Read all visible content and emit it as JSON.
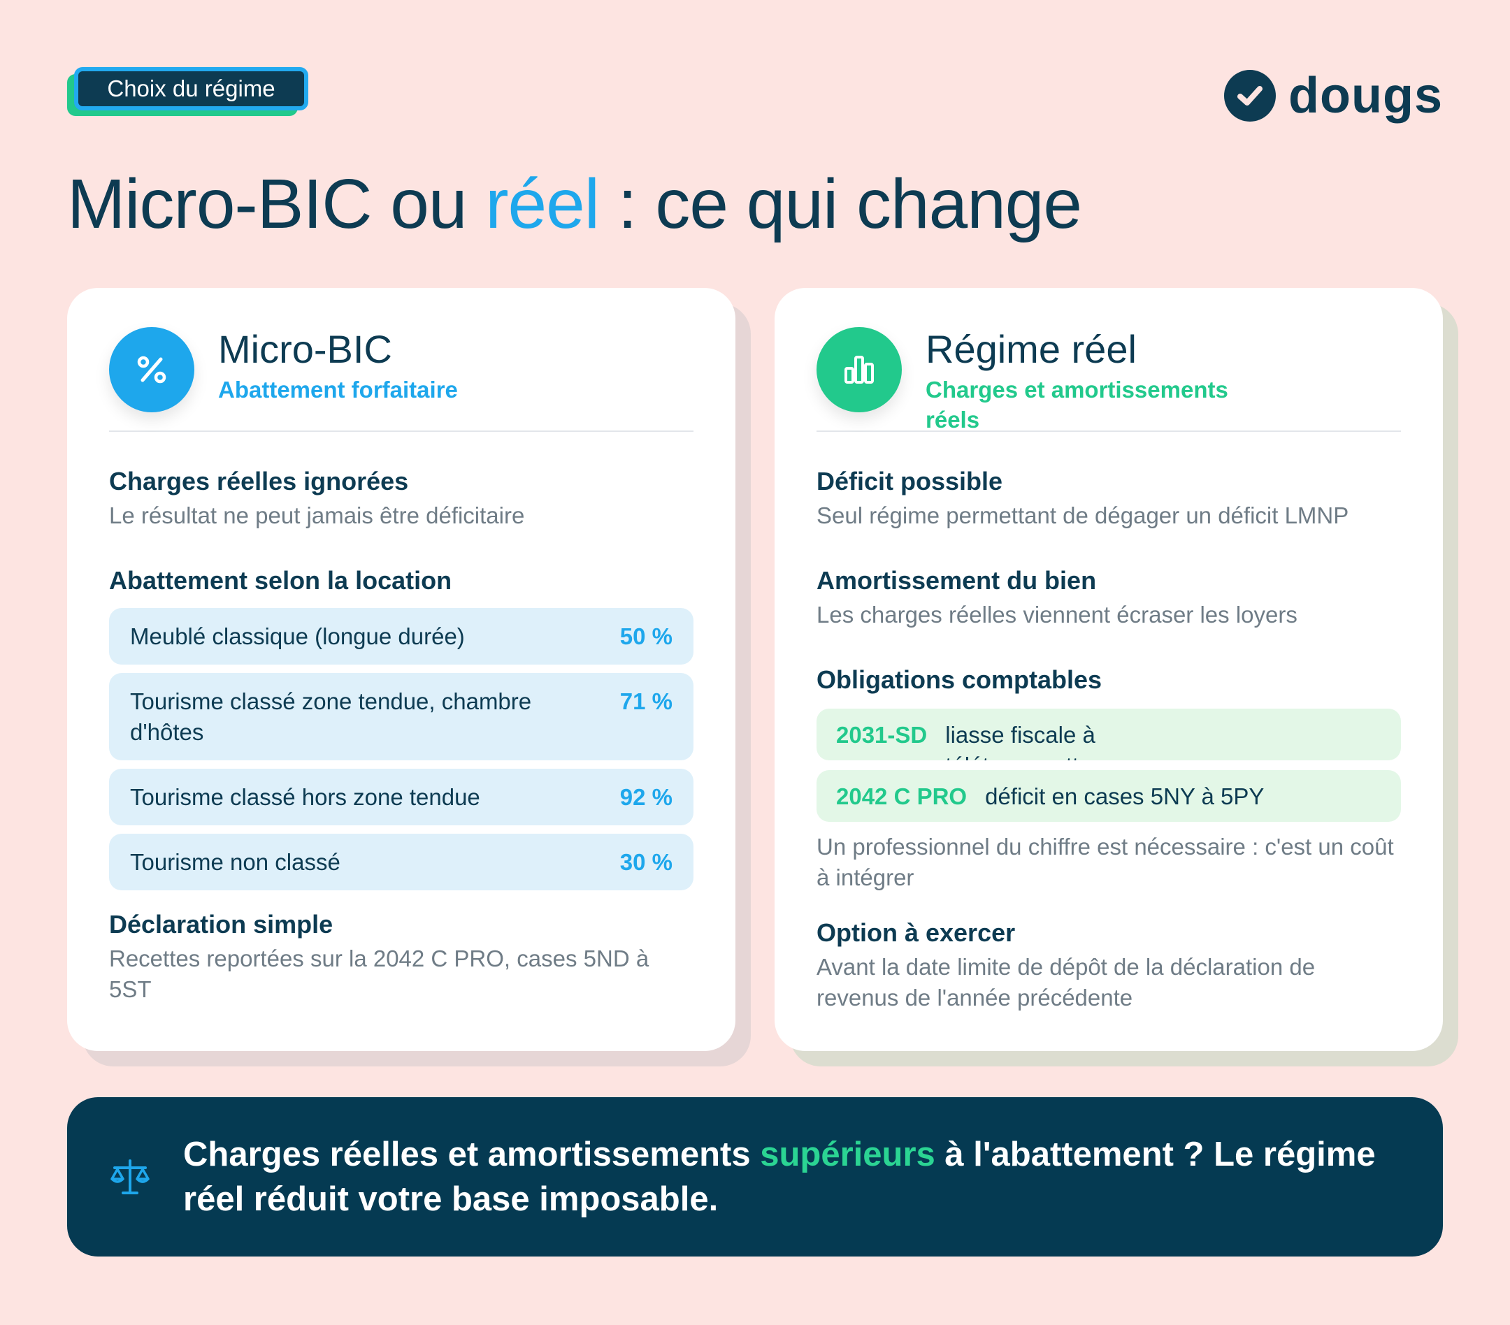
{
  "header": {
    "tag": "Choix du régime",
    "logo_text": "dougs",
    "title_part1": "Micro-BIC ou ",
    "title_accent": "réel",
    "title_part2": " : ce qui change"
  },
  "left_card": {
    "icon": "percent-icon",
    "title": "Micro-BIC",
    "subtitle": "Abattement forfaitaire",
    "section1_title": "Charges réelles ignorées",
    "section1_text": "Le résultat ne peut jamais être déficitaire",
    "section2_title": "Abattement selon la location",
    "rows": [
      {
        "label": "Meublé classique (longue durée)",
        "value": "50 %"
      },
      {
        "label": "Tourisme classé zone tendue, chambre d'hôtes",
        "value": "71 %"
      },
      {
        "label": "Tourisme classé hors zone tendue",
        "value": "92 %"
      },
      {
        "label": "Tourisme non classé",
        "value": "30 %"
      }
    ],
    "section3_title": "Déclaration simple",
    "section3_text": "Recettes reportées sur la 2042 C PRO, cases 5ND à 5ST"
  },
  "right_card": {
    "icon": "bar-chart-icon",
    "title": "Régime réel",
    "subtitle": "Charges et amortissements réels",
    "section1_title": "Déficit possible",
    "section1_text": "Seul régime permettant de dégager un déficit LMNP",
    "section2_title": "Amortissement du bien",
    "section2_text": "Les charges réelles viennent écraser les loyers",
    "section3_title": "Obligations comptables",
    "obligations": [
      {
        "code": "2031-SD",
        "desc": "liasse fiscale à télétransmettre"
      },
      {
        "code": "2042 C PRO",
        "desc": "déficit en cases 5NY à 5PY"
      }
    ],
    "section3_text": "Un professionnel du chiffre est nécessaire : c'est un coût à intégrer",
    "section4_title": "Option à exercer",
    "section4_text": "Avant la date limite de dépôt de la déclaration de revenus de l'année précédente"
  },
  "footer": {
    "icon": "scale-icon",
    "text_part1": "Charges réelles et amortissements ",
    "text_highlight": "supérieurs",
    "text_part2": " à l'abattement ? Le régime réel réduit votre base imposable."
  },
  "colors": {
    "background": "#fde4e1",
    "navy": "#0d3b52",
    "blue": "#1ea7ec",
    "green": "#22c98c"
  }
}
